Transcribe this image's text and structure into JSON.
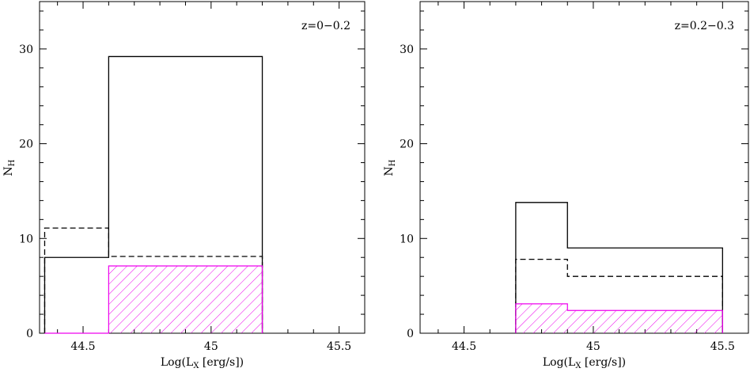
{
  "chart_data": [
    {
      "type": "histogram",
      "annotation": "z=0−0.2",
      "xlabel": "Log(L",
      "xlabel_sub": "X",
      "xlabel_tail": " [erg/s])",
      "ylabel": "N",
      "ylabel_sub": "H",
      "xlim": [
        44.33,
        45.6
      ],
      "ylim": [
        0,
        35
      ],
      "xticks": [
        44.5,
        45,
        45.5
      ],
      "xtick_labels": [
        "44.5",
        "45",
        "45.5"
      ],
      "yticks": [
        0,
        10,
        20,
        30
      ],
      "ytick_labels": [
        "0",
        "10",
        "20",
        "30"
      ],
      "series": [
        {
          "style": "solid",
          "color": "#000000",
          "bins": [
            {
              "x0": 44.35,
              "x1": 44.6,
              "value": 8.0
            },
            {
              "x0": 44.6,
              "x1": 45.2,
              "value": 29.2
            }
          ]
        },
        {
          "style": "dashed",
          "color": "#000000",
          "bins": [
            {
              "x0": 44.35,
              "x1": 44.6,
              "value": 11.1
            },
            {
              "x0": 44.6,
              "x1": 45.2,
              "value": 8.1
            }
          ]
        },
        {
          "style": "hatched",
          "color": "#ee00ee",
          "bins": [
            {
              "x0": 44.35,
              "x1": 44.6,
              "value": 0.0
            },
            {
              "x0": 44.6,
              "x1": 45.2,
              "value": 7.1
            }
          ]
        }
      ]
    },
    {
      "type": "histogram",
      "annotation": "z=0.2−0.3",
      "xlabel": "Log(L",
      "xlabel_sub": "X",
      "xlabel_tail": " [erg/s])",
      "ylabel": "N",
      "ylabel_sub": "H",
      "xlim": [
        44.33,
        45.6
      ],
      "ylim": [
        0,
        35
      ],
      "xticks": [
        44.5,
        45,
        45.5
      ],
      "xtick_labels": [
        "44.5",
        "45",
        "45.5"
      ],
      "yticks": [
        0,
        10,
        20,
        30
      ],
      "ytick_labels": [
        "0",
        "10",
        "20",
        "30"
      ],
      "series": [
        {
          "style": "solid",
          "color": "#000000",
          "bins": [
            {
              "x0": 44.7,
              "x1": 44.9,
              "value": 13.8
            },
            {
              "x0": 44.9,
              "x1": 45.5,
              "value": 9.0
            }
          ]
        },
        {
          "style": "dashed",
          "color": "#000000",
          "bins": [
            {
              "x0": 44.7,
              "x1": 44.9,
              "value": 7.8
            },
            {
              "x0": 44.9,
              "x1": 45.5,
              "value": 6.0
            }
          ]
        },
        {
          "style": "hatched",
          "color": "#ee00ee",
          "bins": [
            {
              "x0": 44.7,
              "x1": 44.9,
              "value": 3.1
            },
            {
              "x0": 44.9,
              "x1": 45.5,
              "value": 2.4
            }
          ]
        }
      ]
    }
  ]
}
